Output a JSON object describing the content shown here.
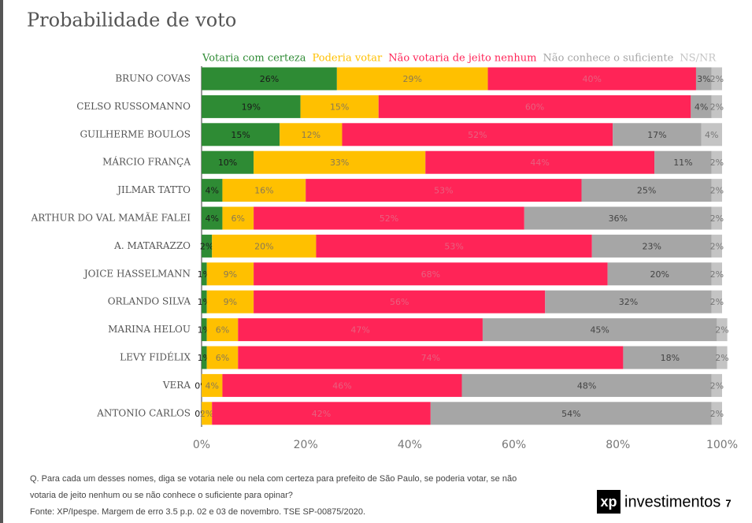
{
  "chart_data": {
    "type": "stacked_barh",
    "title": "Probabilidade de voto",
    "categories": [
      "BRUNO COVAS",
      "CELSO RUSSOMANNO",
      "GUILHERME BOULOS",
      "MÁRCIO FRANÇA",
      "JILMAR TATTO",
      "ARTHUR DO VAL MAMÃE FALEI",
      "A. MATARAZZO",
      "JOICE HASSELMANN",
      "ORLANDO SILVA",
      "MARINA HELOU",
      "LEVY FIDÉLIX",
      "VERA",
      "ANTONIO CARLOS"
    ],
    "series": [
      {
        "name": "Votaria com certeza",
        "color": "#2e8b34",
        "values": [
          26,
          19,
          15,
          10,
          4,
          4,
          2,
          1,
          1,
          1,
          1,
          0,
          0
        ],
        "value_labels": [
          "26%",
          "19%",
          "15%",
          "10%",
          "4%",
          "4%",
          "2%",
          "1%",
          "1%",
          "1%",
          "1%",
          "0%",
          "0%"
        ]
      },
      {
        "name": "Poderia votar",
        "color": "#ffc000",
        "values": [
          29,
          15,
          12,
          33,
          16,
          6,
          20,
          9,
          9,
          6,
          6,
          4,
          2
        ],
        "value_labels": [
          "29%",
          "15%",
          "12%",
          "33%",
          "16%",
          "6%",
          "20%",
          "9%",
          "9%",
          "6%",
          "6%",
          "4%",
          "2%"
        ]
      },
      {
        "name": "Não votaria de jeito nenhum",
        "color": "#ff2457",
        "values": [
          40,
          60,
          52,
          44,
          53,
          52,
          53,
          68,
          56,
          47,
          74,
          46,
          42
        ],
        "value_labels": [
          "40%",
          "60%",
          "52%",
          "44%",
          "53%",
          "52%",
          "53%",
          "68%",
          "56%",
          "47%",
          "74%",
          "46%",
          "42%"
        ]
      },
      {
        "name": "Não conhece o suficiente",
        "color": "#a6a6a6",
        "values": [
          3,
          4,
          17,
          11,
          25,
          36,
          23,
          20,
          32,
          45,
          18,
          48,
          54
        ],
        "value_labels": [
          "3%",
          "4%",
          "17%",
          "11%",
          "25%",
          "36%",
          "23%",
          "20%",
          "32%",
          "45%",
          "18%",
          "48%",
          "54%"
        ]
      },
      {
        "name": "NS/NR",
        "color": "#c4c4c4",
        "values": [
          2,
          2,
          4,
          2,
          2,
          2,
          2,
          2,
          2,
          2,
          2,
          2,
          2
        ],
        "value_labels": [
          "2%",
          "2%",
          "4%",
          "2%",
          "2%",
          "2%",
          "2%",
          "2%",
          "2%",
          "2%",
          "2%",
          "2%",
          "2%"
        ]
      }
    ],
    "xlim": [
      0,
      100
    ],
    "xticks": [
      {
        "value": 0,
        "label": "0%"
      },
      {
        "value": 20,
        "label": "20%"
      },
      {
        "value": 40,
        "label": "40%"
      },
      {
        "value": 60,
        "label": "60%"
      },
      {
        "value": 80,
        "label": "80%"
      },
      {
        "value": 100,
        "label": "100%"
      }
    ],
    "notes": [
      "Q. Para cada um desses nomes, diga se votaria nele ou nela com certeza para prefeito de São Paulo, se poderia votar, se não",
      "votaria de jeito nenhum ou se não conhece o suficiente para opinar?",
      "Fonte: XP/Ipespe. Margem de erro 3.5 p.p. 02 e 03 de novembro. TSE SP-00875/2020."
    ],
    "logo_mark": "xp",
    "logo_text": "investimentos",
    "page_number": 7
  }
}
